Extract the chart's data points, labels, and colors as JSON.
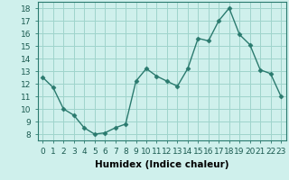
{
  "x": [
    0,
    1,
    2,
    3,
    4,
    5,
    6,
    7,
    8,
    9,
    10,
    11,
    12,
    13,
    14,
    15,
    16,
    17,
    18,
    19,
    20,
    21,
    22,
    23
  ],
  "y": [
    12.5,
    11.7,
    10.0,
    9.5,
    8.5,
    8.0,
    8.1,
    8.5,
    8.8,
    12.2,
    13.2,
    12.6,
    12.2,
    11.8,
    13.2,
    15.6,
    15.4,
    17.0,
    18.0,
    15.9,
    15.1,
    13.1,
    12.8,
    11.0
  ],
  "line_color": "#2a7a6e",
  "marker": "D",
  "marker_size": 2.5,
  "bg_color": "#cff0ec",
  "grid_color": "#9fd4cc",
  "xlabel": "Humidex (Indice chaleur)",
  "ylabel_ticks": [
    8,
    9,
    10,
    11,
    12,
    13,
    14,
    15,
    16,
    17,
    18
  ],
  "xlim": [
    -0.5,
    23.5
  ],
  "ylim": [
    7.5,
    18.5
  ],
  "xticks": [
    0,
    1,
    2,
    3,
    4,
    5,
    6,
    7,
    8,
    9,
    10,
    11,
    12,
    13,
    14,
    15,
    16,
    17,
    18,
    19,
    20,
    21,
    22,
    23
  ],
  "line_width": 1.0,
  "xlabel_fontsize": 7.5,
  "tick_fontsize": 6.5
}
